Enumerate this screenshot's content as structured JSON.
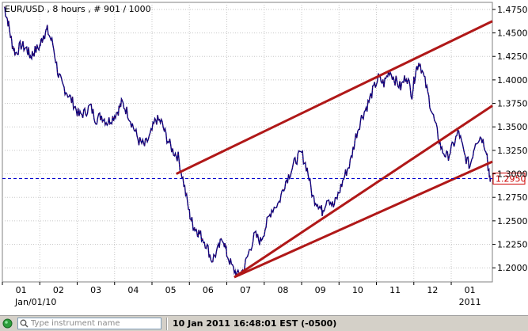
{
  "chart_data": {
    "type": "line",
    "title": "EUR/USD , 8 hours , # 901 / 1000",
    "instrument": "EUR/USD",
    "interval": "8 hours",
    "bars": "# 901 / 1000",
    "x_ticks": [
      "01",
      "02",
      "03",
      "04",
      "05",
      "06",
      "07",
      "08",
      "09",
      "10",
      "11",
      "12",
      "01"
    ],
    "x_sublabels": {
      "first": "Jan/01/10",
      "last": "2011"
    },
    "y_ticks": [
      "1.4750",
      "1.4500",
      "1.4250",
      "1.4000",
      "1.3750",
      "1.3500",
      "1.3250",
      "1.3000",
      "1.2750",
      "1.2500",
      "1.2250",
      "1.2000"
    ],
    "ylim": [
      1.185,
      1.4825
    ],
    "xlim": [
      0,
      13.1
    ],
    "current_price": "1.2950",
    "current_price_value": 1.295,
    "grid": true,
    "series": [
      {
        "x": [
          0.05,
          0.15,
          0.25,
          0.35,
          0.5,
          0.65,
          0.75,
          0.85,
          1.0,
          1.1,
          1.2,
          1.35,
          1.5,
          1.6,
          1.75,
          1.9,
          2.05,
          2.2,
          2.35,
          2.5,
          2.65,
          2.8,
          2.95,
          3.1,
          3.2,
          3.35,
          3.5,
          3.65,
          3.8,
          3.95,
          4.1,
          4.25,
          4.4,
          4.55,
          4.7,
          4.85,
          5.0,
          5.1,
          5.2,
          5.3,
          5.45,
          5.6,
          5.75,
          5.9,
          6.0,
          6.15,
          6.3,
          6.45,
          6.6,
          6.75,
          6.9,
          7.05,
          7.2,
          7.4,
          7.55,
          7.7,
          7.85,
          8.0,
          8.15,
          8.3,
          8.45,
          8.55,
          8.7,
          8.85,
          9.0,
          9.15,
          9.3,
          9.45,
          9.6,
          9.75,
          9.9,
          10.05,
          10.2,
          10.35,
          10.5,
          10.65,
          10.8,
          10.95,
          11.05,
          11.15,
          11.3,
          11.45,
          11.6,
          11.75,
          11.9,
          12.05,
          12.2,
          12.35,
          12.5,
          12.65,
          12.8,
          12.95,
          13.0,
          13.05
        ],
        "y": [
          1.478,
          1.462,
          1.44,
          1.428,
          1.437,
          1.433,
          1.425,
          1.43,
          1.436,
          1.448,
          1.453,
          1.438,
          1.405,
          1.395,
          1.385,
          1.375,
          1.362,
          1.365,
          1.372,
          1.358,
          1.362,
          1.355,
          1.36,
          1.368,
          1.376,
          1.365,
          1.35,
          1.335,
          1.33,
          1.34,
          1.358,
          1.355,
          1.338,
          1.325,
          1.318,
          1.29,
          1.258,
          1.245,
          1.24,
          1.235,
          1.225,
          1.208,
          1.218,
          1.232,
          1.215,
          1.2,
          1.192,
          1.198,
          1.218,
          1.235,
          1.228,
          1.245,
          1.262,
          1.27,
          1.29,
          1.302,
          1.315,
          1.322,
          1.305,
          1.275,
          1.268,
          1.26,
          1.276,
          1.265,
          1.28,
          1.298,
          1.312,
          1.34,
          1.36,
          1.372,
          1.388,
          1.402,
          1.396,
          1.41,
          1.4,
          1.392,
          1.405,
          1.385,
          1.41,
          1.42,
          1.398,
          1.372,
          1.348,
          1.325,
          1.318,
          1.33,
          1.345,
          1.32,
          1.308,
          1.335,
          1.34,
          1.325,
          1.3,
          1.295
        ]
      }
    ],
    "trendlines": [
      {
        "x": [
          4.65,
          13.1
        ],
        "y": [
          1.3,
          1.4625
        ]
      },
      {
        "x": [
          6.2,
          13.1
        ],
        "y": [
          1.19,
          1.3725
        ]
      },
      {
        "x": [
          6.2,
          13.1
        ],
        "y": [
          1.19,
          1.313
        ]
      }
    ],
    "colors": {
      "price": "#000080",
      "trendline": "#b01818",
      "current_line": "#0000cc",
      "grid": "#c8c8c8"
    }
  },
  "statusbar": {
    "search_placeholder": "Type instrument name",
    "time_text": "10 Jan 2011 16:48:01  EST (-0500)"
  }
}
